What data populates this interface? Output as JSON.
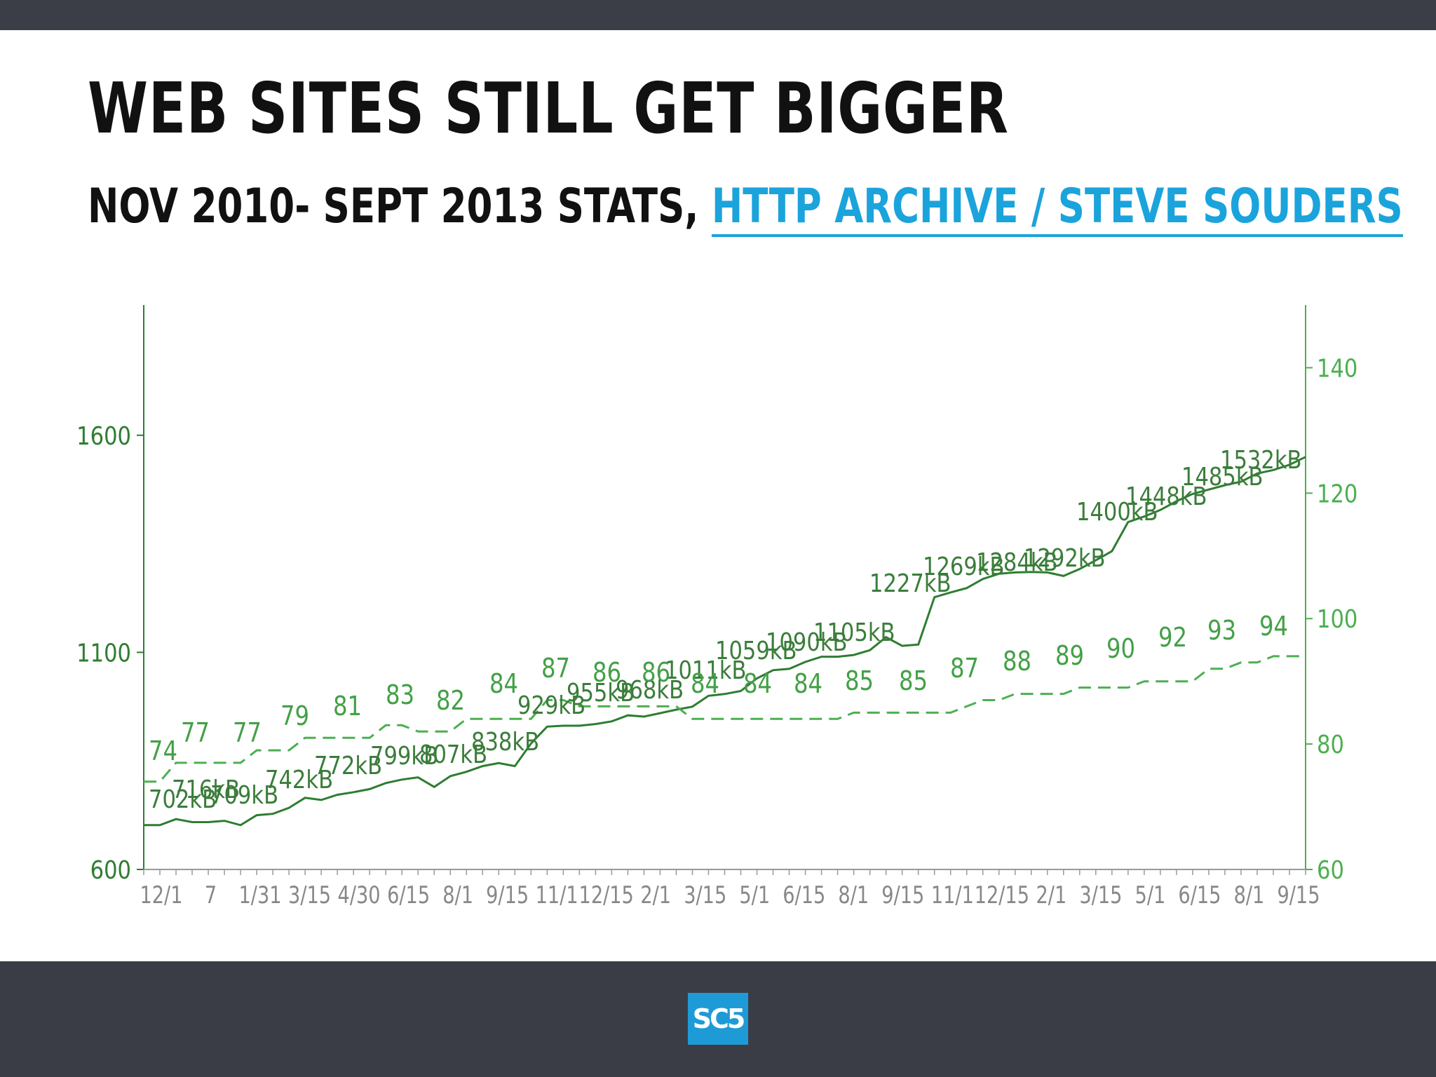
{
  "slide": {
    "title": "Web sites still get bigger",
    "subtitle_prefix": "Nov 2010- Sept 2013 stats,",
    "subtitle_link": "HTTP Archive / Steve Souders"
  },
  "logo": {
    "text": "SC5"
  },
  "colors": {
    "size_line": "#2e7d32",
    "requests_line": "#4caf50",
    "axis_left": "#2e7d32",
    "axis_right": "#4caf50",
    "link": "#1ba3dc"
  },
  "chart_data": {
    "type": "line",
    "title": "",
    "x_tick_labels": [
      "12/1",
      "7",
      "1/31",
      "3/15",
      "4/30",
      "6/15",
      "8/1",
      "9/15",
      "11/1",
      "12/15",
      "2/1",
      "3/15",
      "5/1",
      "6/15",
      "8/1",
      "9/15",
      "11/1",
      "12/15",
      "2/1",
      "3/15",
      "5/1",
      "6/15",
      "8/1",
      "9/15"
    ],
    "left_axis": {
      "ylim": [
        600,
        1900
      ],
      "ticks": [
        600,
        1100,
        1600
      ]
    },
    "right_axis": {
      "ylim": [
        60,
        150
      ],
      "ticks": [
        60,
        80,
        100,
        120,
        140
      ]
    },
    "series": [
      {
        "axis": "left",
        "style": "solid",
        "values": [
          702,
          702,
          716,
          709,
          709,
          712,
          702,
          725,
          728,
          742,
          765,
          760,
          772,
          778,
          785,
          799,
          807,
          812,
          790,
          815,
          825,
          838,
          845,
          838,
          890,
          929,
          931,
          931,
          935,
          941,
          955,
          952,
          960,
          968,
          975,
          1000,
          1004,
          1011,
          1040,
          1059,
          1062,
          1078,
          1090,
          1090,
          1094,
          1105,
          1135,
          1115,
          1118,
          1227,
          1238,
          1248,
          1269,
          1281,
          1284,
          1285,
          1284,
          1276,
          1292,
          1312,
          1333,
          1400,
          1413,
          1428,
          1448,
          1465,
          1475,
          1485,
          1493,
          1512,
          1520,
          1532,
          1550
        ],
        "labels": [
          "702kB",
          "716kB",
          "709kB",
          "742kB",
          "772kB",
          "799kB",
          "807kB",
          "838kB",
          "929kB",
          "955kB",
          "968kB",
          "1011kB",
          "1059kB",
          "1090kB",
          "1105kB",
          "1227kB",
          "1269kB",
          "1284kB",
          "1292kB",
          "1400kB",
          "1448kB",
          "1485kB",
          "1532kB"
        ]
      },
      {
        "axis": "right",
        "style": "dashed",
        "values": [
          74,
          74,
          77,
          77,
          77,
          77,
          77,
          79,
          79,
          79,
          81,
          81,
          81,
          81,
          81,
          83,
          83,
          82,
          82,
          82,
          84,
          84,
          84,
          84,
          84,
          87,
          87,
          86,
          86,
          86,
          86,
          86,
          86,
          86,
          84,
          84,
          84,
          84,
          84,
          84,
          84,
          84,
          84,
          84,
          85,
          85,
          85,
          85,
          85,
          85,
          85,
          86,
          87,
          87,
          88,
          88,
          88,
          88,
          89,
          89,
          89,
          89,
          90,
          90,
          90,
          90,
          92,
          92,
          93,
          93,
          94,
          94,
          94
        ],
        "labels": [
          "74",
          "77",
          "77",
          "79",
          "81",
          "83",
          "82",
          "84",
          "87",
          "86",
          "86",
          "84",
          "84",
          "84",
          "85",
          "85",
          "87",
          "88",
          "89",
          "90",
          "92",
          "93",
          "94"
        ]
      }
    ]
  }
}
